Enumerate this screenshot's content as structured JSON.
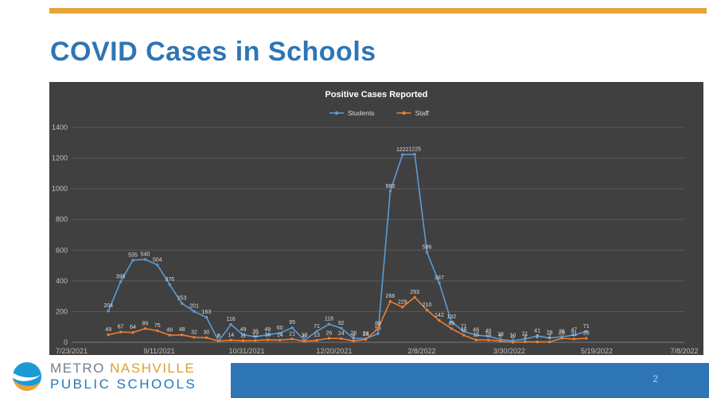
{
  "slide": {
    "title": "COVID Cases in Schools",
    "page_number": "2"
  },
  "logo": {
    "metro": "METRO",
    "nashville": "NASHVILLE",
    "public_schools": "PUBLIC SCHOOLS"
  },
  "colors": {
    "accent_gold": "#E9A23B",
    "title_blue": "#2E75B6",
    "footer_blue": "#2E75B6",
    "chart_background": "#404040",
    "gridline": "#595959",
    "axis_line": "#7A7A7A",
    "axis_text": "#BFBFBF",
    "chart_title_text": "#FFFFFF",
    "legend_text": "#D9D9D9",
    "data_label_text": "#DCDCDC",
    "students_line": "#5B9BD5",
    "staff_line": "#ED7D31",
    "page_number_text": "#B8CCE4",
    "logo_metro": "#6E8190",
    "logo_nashville": "#D9A32A",
    "logo_public_schools": "#2178BC",
    "logo_icon_blue": "#1C9AD6",
    "logo_icon_gold": "#E9A23B"
  },
  "chart_data": {
    "type": "line",
    "title": "Positive Cases Reported",
    "legend": [
      "Students",
      "Staff"
    ],
    "legend_position": "top",
    "grid": true,
    "ylim": [
      0,
      1400
    ],
    "y_ticks": [
      0,
      200,
      400,
      600,
      800,
      1000,
      1200,
      1400
    ],
    "x_tick_labels": [
      "7/23/2021",
      "9/11/2021",
      "10/31/2021",
      "12/20/2021",
      "2/8/2022",
      "3/30/2022",
      "5/19/2022",
      "7/8/2022"
    ],
    "x_tick_days": [
      0,
      50,
      100,
      150,
      200,
      250,
      300,
      350
    ],
    "x_start_day": 21,
    "x_step_days": 7,
    "series": [
      {
        "name": "Students",
        "color": "#5B9BD5",
        "values": [
          204,
          395,
          535,
          540,
          504,
          376,
          253,
          201,
          163,
          8,
          116,
          49,
          36,
          49,
          60,
          95,
          13,
          71,
          118,
          92,
          26,
          24,
          56,
          983,
          1222,
          1225,
          586,
          387,
          132,
          71,
          46,
          40,
          18,
          10,
          21,
          41,
          28,
          36,
          47,
          71
        ]
      },
      {
        "name": "Staff",
        "color": "#ED7D31",
        "values": [
          49,
          67,
          64,
          89,
          75,
          46,
          48,
          32,
          30,
          8,
          14,
          11,
          12,
          16,
          14,
          21,
          6,
          13,
          26,
          24,
          9,
          18,
          88,
          266,
          229,
          293,
          210,
          142,
          89,
          46,
          15,
          15,
          8,
          0,
          3,
          2,
          2,
          26,
          21,
          26
        ]
      }
    ]
  }
}
